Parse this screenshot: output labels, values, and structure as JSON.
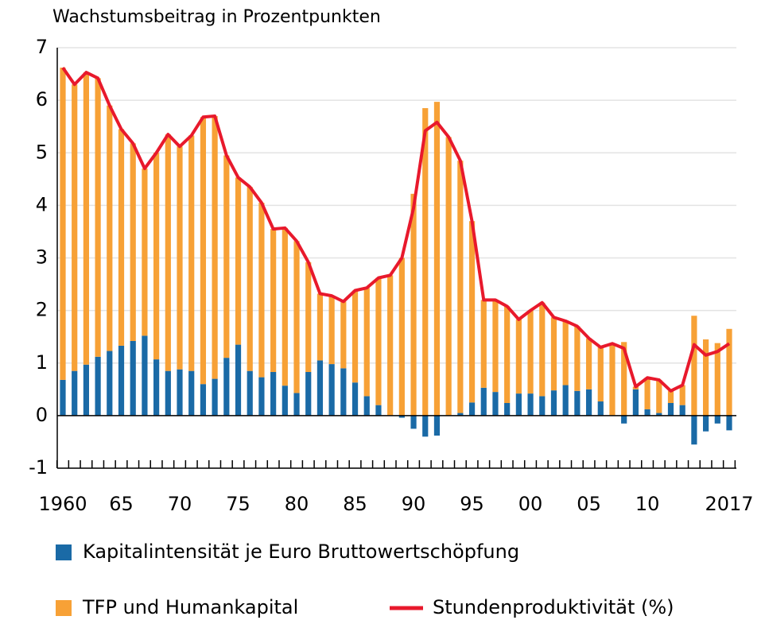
{
  "chart_data": {
    "type": "bar",
    "stacked": true,
    "title": "Wachstumsbeitrag in Prozentpunkten",
    "categories": [
      "1960",
      null,
      null,
      null,
      null,
      "65",
      null,
      null,
      null,
      null,
      "70",
      null,
      null,
      null,
      null,
      "75",
      null,
      null,
      null,
      null,
      "80",
      null,
      null,
      null,
      null,
      "85",
      null,
      null,
      null,
      null,
      "90",
      null,
      null,
      null,
      null,
      "95",
      null,
      null,
      null,
      null,
      "00",
      null,
      null,
      null,
      null,
      "05",
      null,
      null,
      null,
      null,
      "10",
      null,
      null,
      null,
      null,
      null,
      null,
      "2017"
    ],
    "series": [
      {
        "name": "Kapitalintensität je Euro Bruttowertschöpfung",
        "color": "#1a6aa6",
        "type": "bar",
        "values": [
          0.68,
          0.85,
          0.97,
          1.12,
          1.23,
          1.33,
          1.42,
          1.52,
          1.07,
          0.85,
          0.88,
          0.85,
          0.6,
          0.7,
          1.1,
          1.35,
          0.85,
          0.73,
          0.83,
          0.57,
          0.43,
          0.83,
          1.05,
          0.98,
          0.9,
          0.63,
          0.37,
          0.2,
          0.0,
          -0.04,
          -0.25,
          -0.4,
          -0.38,
          0.0,
          0.05,
          0.25,
          0.53,
          0.45,
          0.24,
          0.42,
          0.42,
          0.37,
          0.48,
          0.58,
          0.47,
          0.5,
          0.27,
          0.0,
          -0.15,
          0.5,
          0.12,
          0.05,
          0.24,
          0.2,
          -0.55,
          -0.3,
          -0.15,
          -0.28
        ]
      },
      {
        "name": "TFP und Humankapital",
        "color": "#f7a136",
        "type": "bar",
        "values": [
          5.94,
          5.45,
          5.56,
          5.3,
          4.67,
          4.12,
          3.76,
          3.18,
          3.93,
          4.5,
          4.24,
          4.48,
          5.08,
          5.0,
          3.85,
          3.18,
          3.5,
          3.32,
          2.72,
          3.0,
          2.89,
          2.09,
          1.27,
          1.3,
          1.27,
          1.75,
          2.06,
          2.42,
          2.67,
          3.0,
          4.22,
          5.85,
          5.97,
          5.3,
          4.8,
          3.45,
          1.67,
          1.75,
          1.84,
          1.41,
          1.58,
          1.78,
          1.39,
          1.22,
          1.23,
          0.97,
          1.03,
          1.37,
          1.4,
          0.05,
          0.6,
          0.63,
          0.23,
          0.38,
          1.9,
          1.45,
          1.38,
          1.65
        ]
      },
      {
        "name": "Stundenproduktivität (%)",
        "color": "#e8192c",
        "type": "line",
        "values": [
          6.62,
          6.3,
          6.53,
          6.42,
          5.9,
          5.45,
          5.18,
          4.7,
          5.0,
          5.35,
          5.12,
          5.33,
          5.68,
          5.7,
          4.95,
          4.53,
          4.35,
          4.05,
          3.55,
          3.57,
          3.32,
          2.92,
          2.32,
          2.28,
          2.17,
          2.38,
          2.43,
          2.62,
          2.67,
          3.0,
          3.95,
          5.42,
          5.58,
          5.3,
          4.85,
          3.7,
          2.2,
          2.2,
          2.08,
          1.83,
          2.0,
          2.15,
          1.87,
          1.8,
          1.7,
          1.47,
          1.3,
          1.37,
          1.28,
          0.55,
          0.72,
          0.68,
          0.47,
          0.58,
          1.35,
          1.15,
          1.22,
          1.37
        ]
      }
    ],
    "ylim": [
      -1,
      7
    ],
    "yticks": [
      -1,
      0,
      1,
      2,
      3,
      4,
      5,
      6,
      7
    ],
    "grid": true
  }
}
